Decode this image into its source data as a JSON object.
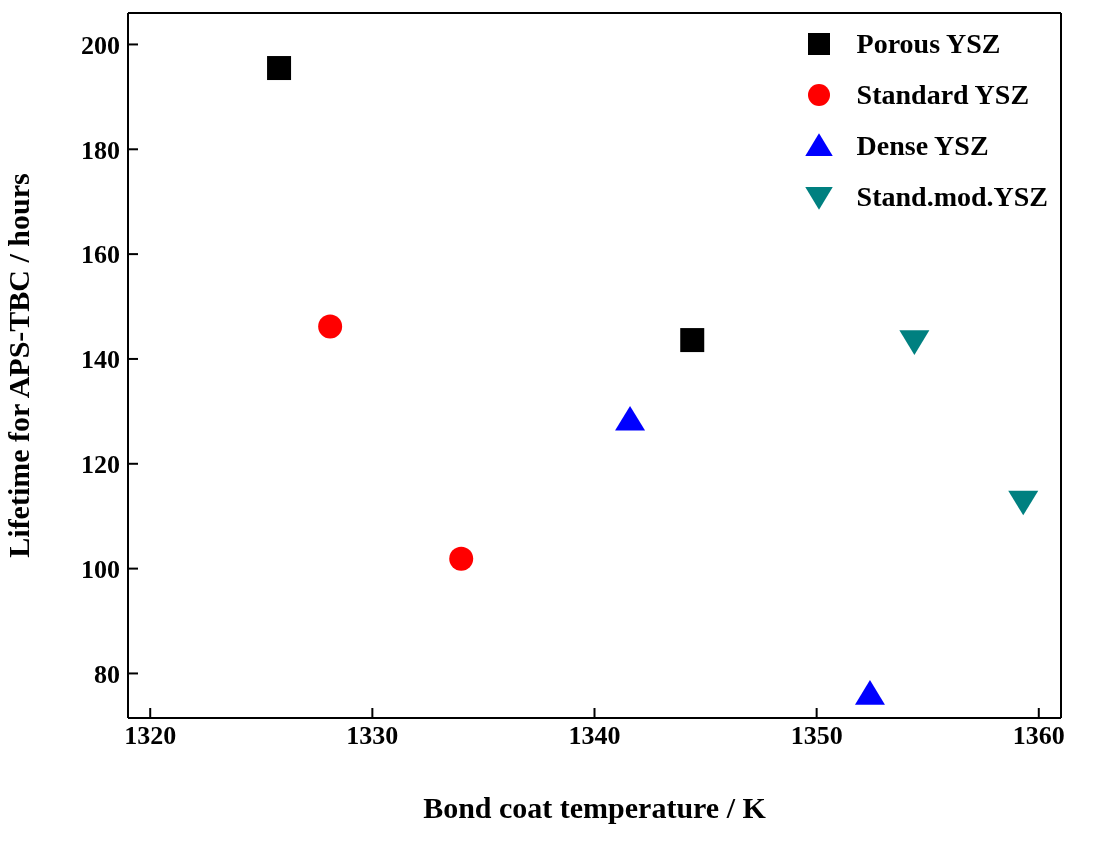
{
  "chart_data": {
    "type": "scatter",
    "xlabel": "Bond coat temperature / K",
    "ylabel": "Lifetime for APS-TBC / hours",
    "xlim": [
      1319,
      1361
    ],
    "xticks": [
      1320,
      1330,
      1340,
      1350,
      1360
    ],
    "ylim": [
      71.5,
      206
    ],
    "yticks": [
      80,
      100,
      120,
      140,
      160,
      180,
      200
    ],
    "legend": "top right",
    "series": [
      {
        "name": "Porous YSZ",
        "color": "#000000",
        "marker": "square",
        "x": [
          1325.8,
          1344.4
        ],
        "values": [
          195.5,
          143.6
        ]
      },
      {
        "name": "Standard YSZ",
        "color": "#ff0000",
        "marker": "circle",
        "x": [
          1328.1,
          1334.0
        ],
        "values": [
          146.2,
          101.9
        ]
      },
      {
        "name": "Dense YSZ",
        "color": "#0000ff",
        "marker": "triangle",
        "x": [
          1341.6,
          1352.4
        ],
        "values": [
          128.4,
          76.1
        ]
      },
      {
        "name": "Stand.mod.YSZ",
        "color": "#008080",
        "marker": "triangle-down",
        "x": [
          1354.4,
          1359.3
        ],
        "values": [
          143.4,
          112.8
        ]
      }
    ]
  }
}
